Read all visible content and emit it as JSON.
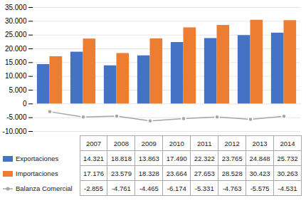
{
  "chart_data": {
    "type": "bar",
    "categories": [
      "2007",
      "2008",
      "2009",
      "2010",
      "2011",
      "2012",
      "2013",
      "2014"
    ],
    "series": [
      {
        "name": "Exportaciones",
        "type": "bar",
        "color": "#4472C4",
        "values": [
          14321,
          18818,
          13863,
          17490,
          22322,
          23765,
          24848,
          25732
        ],
        "value_labels": [
          "14.321",
          "18.818",
          "13.863",
          "17.490",
          "22.322",
          "23.765",
          "24.848",
          "25.732"
        ]
      },
      {
        "name": "Importaciones",
        "type": "bar",
        "color": "#ED7D31",
        "values": [
          17176,
          23579,
          18328,
          23664,
          27653,
          28528,
          30423,
          30263
        ],
        "value_labels": [
          "17.176",
          "23.579",
          "18.328",
          "23.664",
          "27.653",
          "28.528",
          "30.423",
          "30.263"
        ]
      },
      {
        "name": "Balanza Comercial",
        "type": "line",
        "color": "#A5A5A5",
        "marker": "circle",
        "values": [
          -2855,
          -4761,
          -4465,
          -6174,
          -5331,
          -4763,
          -5575,
          -4531
        ],
        "value_labels": [
          "-2.855",
          "-4.761",
          "-4.465",
          "-6.174",
          "-5.331",
          "-4.763",
          "-5.575",
          "-4.531"
        ]
      }
    ],
    "ylim": [
      -10000,
      35000
    ],
    "yticks": [
      {
        "value": -10000,
        "label": "-10.000"
      },
      {
        "value": -5000,
        "label": "-5.000"
      },
      0,
      {
        "value": 5000,
        "label": "5.000"
      },
      {
        "value": 10000,
        "label": "10.000"
      },
      {
        "value": 15000,
        "label": "15.000"
      },
      {
        "value": 20000,
        "label": "20.000"
      },
      {
        "value": 25000,
        "label": "25.000"
      },
      {
        "value": 30000,
        "label": "30.000"
      },
      {
        "value": 35000,
        "label": "35.000"
      }
    ],
    "grid": true,
    "legend": "bottom",
    "data_labels": true,
    "tick_labels": "y"
  }
}
